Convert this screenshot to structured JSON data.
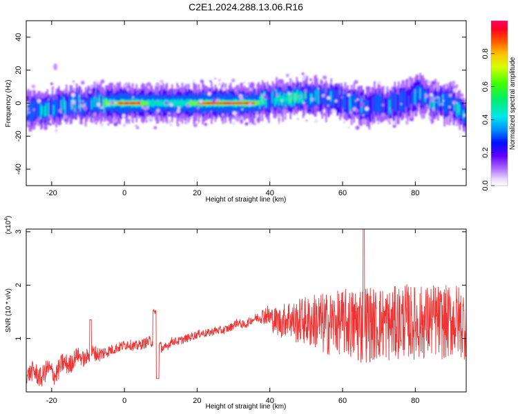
{
  "figure_title": "C2E1.2024.288.13.06.R16",
  "chart_data": [
    {
      "type": "heatmap",
      "title": "C2E1.2024.288.13.06.R16",
      "xlabel": "Height of straight line (km)",
      "ylabel": "Frequency (Hz)",
      "xlim": [
        -27,
        94
      ],
      "ylim": [
        -50,
        50
      ],
      "xticks": [
        -20,
        0,
        20,
        40,
        60,
        80
      ],
      "yticks": [
        -40,
        -20,
        0,
        20,
        40
      ],
      "grid": false,
      "colorbar": {
        "label": "Normalized spectral amplitude",
        "range": [
          0.0,
          1.0
        ],
        "ticks": [
          0.0,
          0.2,
          0.4,
          0.6,
          0.8
        ],
        "tick_labels": [
          "0.0",
          "0.2",
          "0.4",
          "0.6",
          "0.8"
        ],
        "colormap": "rainbow"
      },
      "ridge": {
        "description_x_km": [
          -27,
          -22,
          -18,
          -14,
          -10,
          -6,
          -2,
          0,
          4,
          8,
          12,
          16,
          20,
          24,
          28,
          32,
          36,
          38,
          42,
          46,
          50,
          54,
          58,
          62,
          66,
          70,
          74,
          78,
          80,
          82,
          86,
          90,
          94
        ],
        "center_hz": [
          -4,
          -3,
          -2,
          -1,
          -1,
          0,
          0,
          0,
          0,
          0,
          0,
          0,
          0,
          0,
          0,
          0,
          0,
          1,
          2,
          3,
          4,
          3,
          2,
          0,
          -2,
          -1,
          0,
          2,
          6,
          4,
          0,
          0,
          -8
        ],
        "peak_amplitude": [
          0.3,
          0.35,
          0.3,
          0.35,
          0.35,
          0.5,
          0.9,
          0.95,
          0.95,
          0.4,
          0.4,
          0.4,
          0.9,
          0.95,
          0.95,
          0.95,
          0.9,
          0.4,
          0.4,
          0.5,
          0.4,
          0.3,
          0.3,
          0.3,
          0.3,
          0.3,
          0.3,
          0.3,
          0.35,
          0.3,
          0.3,
          0.3,
          0.3
        ]
      }
    },
    {
      "type": "line",
      "xlabel": "Height of straight line (km)",
      "ylabel": "SNR (10 * v/v)",
      "y_multiplier_label": "(x10",
      "y_multiplier_exp": "4",
      "y_multiplier_close": ")",
      "xlim": [
        -27,
        94
      ],
      "ylim": [
        0,
        3.05
      ],
      "xticks": [
        -20,
        0,
        20,
        40,
        60,
        80
      ],
      "yticks": [
        1,
        2,
        3
      ],
      "grid": false,
      "color": "#ee3333",
      "x": [
        -27,
        -25,
        -23,
        -21,
        -19,
        -17,
        -15,
        -13,
        -11,
        -9,
        -7,
        -5,
        -3,
        -1,
        1,
        3,
        5,
        7,
        9,
        11,
        13,
        15,
        17,
        19,
        21,
        23,
        25,
        27,
        29,
        31,
        33,
        35,
        37,
        39,
        41,
        43,
        45,
        47,
        49,
        51,
        53,
        55,
        57,
        59,
        61,
        63,
        65,
        67,
        69,
        71,
        73,
        75,
        77,
        79,
        81,
        83,
        85,
        87,
        89,
        91,
        93
      ],
      "y": [
        0.3,
        0.4,
        0.25,
        0.45,
        0.3,
        0.55,
        0.5,
        0.7,
        0.6,
        0.75,
        0.7,
        0.75,
        0.8,
        0.85,
        0.9,
        0.85,
        0.9,
        0.95,
        0.9,
        0.8,
        0.95,
        0.95,
        1.0,
        1.05,
        1.1,
        1.1,
        1.15,
        1.15,
        1.2,
        1.3,
        1.25,
        1.35,
        1.4,
        1.45,
        1.35,
        1.3,
        1.4,
        1.3,
        1.35,
        1.3,
        1.35,
        1.25,
        1.3,
        1.3,
        1.3,
        1.25,
        1.3,
        1.3,
        1.25,
        1.3,
        1.25,
        1.3,
        1.35,
        1.3,
        1.3,
        1.3,
        1.35,
        1.3,
        1.3,
        1.35,
        1.3
      ],
      "noise_amplitude": [
        0.15,
        0.2,
        0.2,
        0.2,
        0.2,
        0.2,
        0.2,
        0.15,
        0.15,
        0.15,
        0.15,
        0.12,
        0.1,
        0.1,
        0.1,
        0.1,
        0.1,
        0.1,
        0.1,
        0.1,
        0.08,
        0.08,
        0.08,
        0.08,
        0.08,
        0.08,
        0.08,
        0.08,
        0.08,
        0.08,
        0.08,
        0.08,
        0.1,
        0.2,
        0.25,
        0.3,
        0.35,
        0.4,
        0.45,
        0.5,
        0.55,
        0.6,
        0.6,
        0.6,
        0.65,
        0.7,
        0.8,
        0.75,
        0.7,
        0.7,
        0.7,
        0.7,
        0.7,
        0.7,
        0.7,
        0.7,
        0.7,
        0.7,
        0.7,
        0.7,
        0.7
      ]
    }
  ]
}
